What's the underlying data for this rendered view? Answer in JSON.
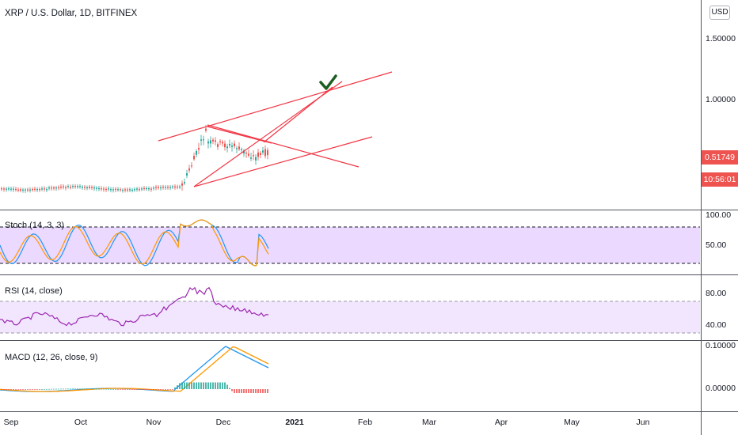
{
  "symbol_title": "XRP / U.S. Dollar, 1D, BITFINEX",
  "currency_button": "USD",
  "price_scale": [
    "1.50000",
    "1.00000"
  ],
  "last_price": "0.51749",
  "countdown": "10:56:01",
  "colors": {
    "up": "#26a69a",
    "down": "#ef5350",
    "trendline": "#f23645",
    "stoch_fill": "#d9b3ff",
    "rsi_line": "#9c27b0",
    "macd_line": "#2196f3",
    "signal_line": "#ff9800",
    "check": "#1b5e20"
  },
  "indicators": {
    "stoch": {
      "label": "Stoch (14, 3, 3)",
      "ticks": [
        "100.00",
        "50.00"
      ]
    },
    "rsi": {
      "label": "RSI (14, close)",
      "ticks": [
        "80.00",
        "40.00"
      ]
    },
    "macd": {
      "label": "MACD (12, 26, close, 9)",
      "ticks": [
        "0.10000",
        "0.00000"
      ]
    }
  },
  "time_axis": [
    "Sep",
    "Oct",
    "Nov",
    "Dec",
    "2021",
    "Feb",
    "Mar",
    "Apr",
    "May",
    "Jun"
  ],
  "annotation_icon": "check-mark-icon"
}
